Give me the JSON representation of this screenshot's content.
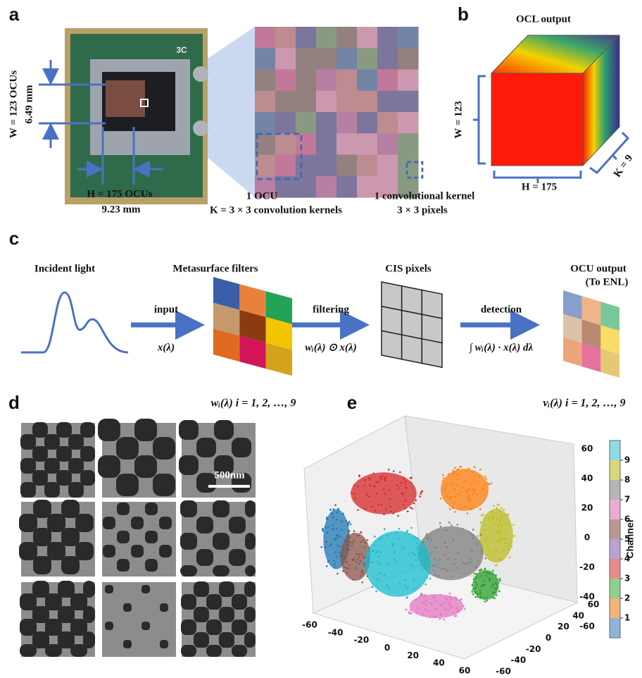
{
  "panels": {
    "a": {
      "label": "a",
      "chip_mark": "3C",
      "w_label": "W = 123 OCUs",
      "w_mm": "6.49 mm",
      "h_label": "H = 175 OCUs",
      "h_mm": "9.23 mm",
      "ocu_caption": [
        "1 OCU",
        "K = 3 × 3 convolution kernels"
      ],
      "kernel_caption": [
        "1 convolutional kernel",
        "3 × 3 pixels"
      ]
    },
    "b": {
      "label": "b",
      "title": "OCL output",
      "w_label": "W = 123",
      "h_label": "H = 175",
      "k_label": "K = 9"
    },
    "c": {
      "label": "c",
      "incident": "Incident light",
      "filters": "Metasurface filters",
      "cis": "CIS pixels",
      "output": [
        "OCU output",
        "(To ENL)"
      ],
      "arrow1": [
        "input",
        "x(λ)"
      ],
      "arrow2": [
        "filtering",
        "wᵢ(λ) ⊙ x(λ)"
      ],
      "arrow3": [
        "detection",
        "∫ wᵢ(λ) · x(λ) dλ"
      ],
      "filter_caption": "wᵢ(λ)  i = 1, 2, …, 9",
      "output_caption": "vᵢ(λ)  i = 1, 2, …, 9"
    },
    "d": {
      "label": "d",
      "scale_bar": "500nm"
    },
    "e": {
      "label": "e",
      "x_ticks": [
        -60,
        -40,
        -20,
        0,
        20,
        40,
        60
      ],
      "y_ticks": [
        -60,
        -40,
        -20,
        0,
        20,
        40,
        60
      ],
      "z_ticks": [
        -60,
        -40,
        -20,
        0,
        20,
        40,
        60
      ],
      "colorbar_title": "Channel",
      "colorbar_ticks": [
        1,
        2,
        3,
        4,
        5,
        6,
        7,
        8,
        9
      ]
    }
  }
}
